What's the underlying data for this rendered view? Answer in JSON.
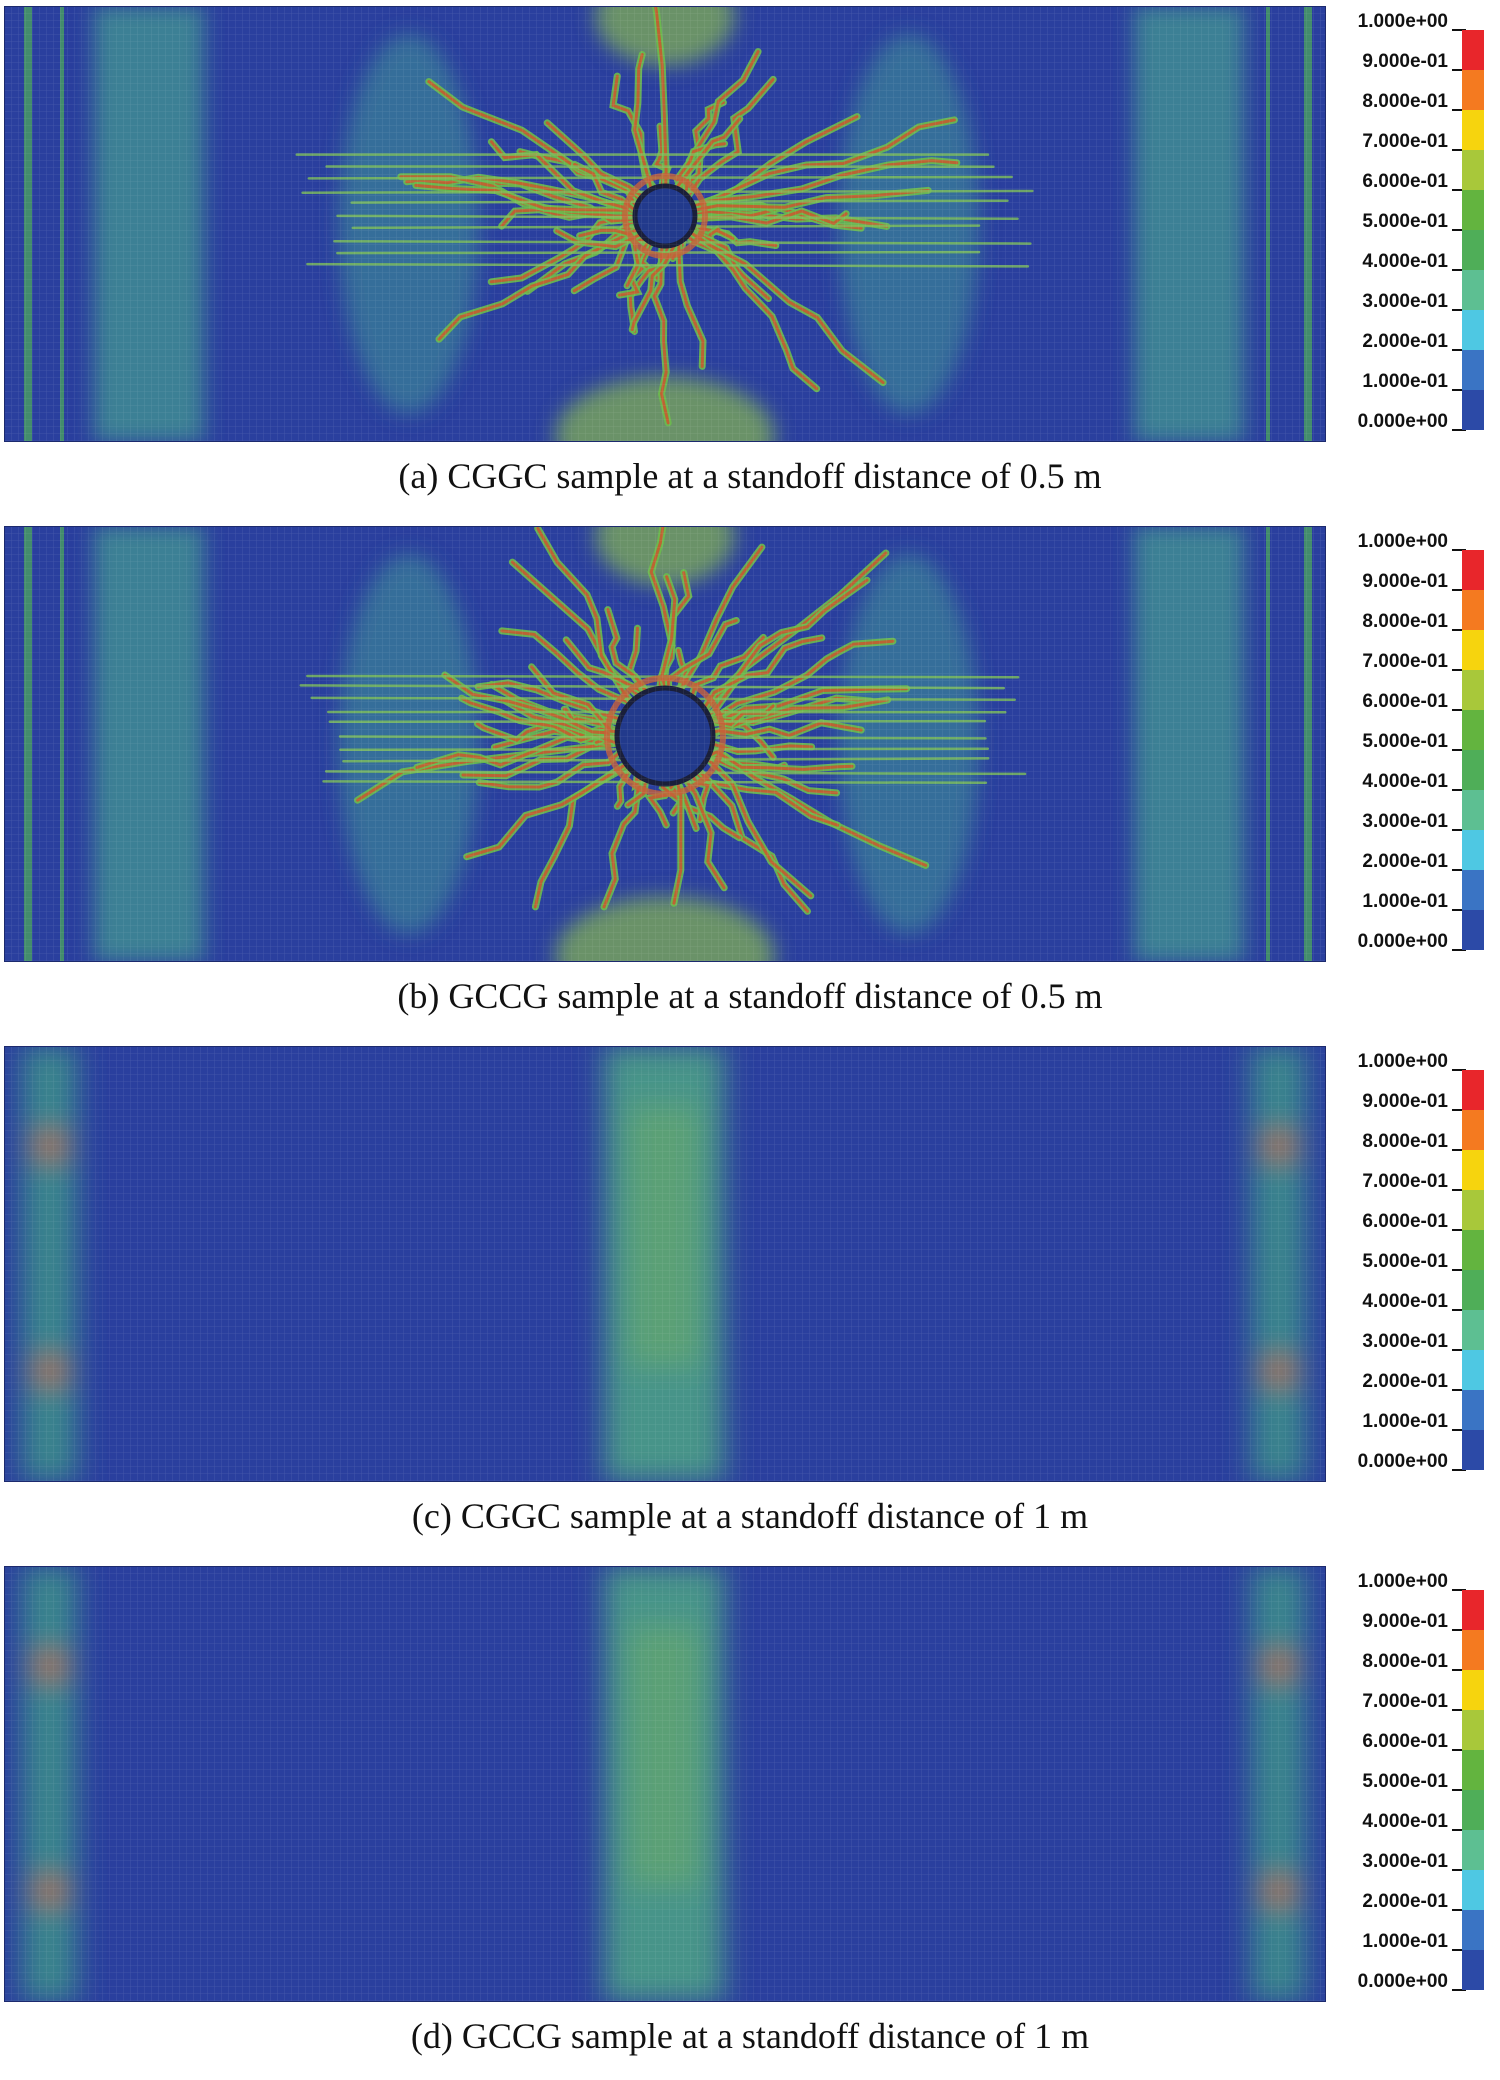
{
  "colorbar": {
    "labels": [
      "1.000e+00",
      "9.000e-01",
      "8.000e-01",
      "7.000e-01",
      "6.000e-01",
      "5.000e-01",
      "4.000e-01",
      "3.000e-01",
      "2.000e-01",
      "1.000e-01",
      "0.000e+00"
    ],
    "colors": [
      "#e8262b",
      "#f47a20",
      "#f6d40e",
      "#a8c83a",
      "#63b43f",
      "#4fae58",
      "#5dbf92",
      "#4ec8e3",
      "#3a74c4",
      "#2c4aa7"
    ]
  },
  "panels": [
    {
      "caption": "(a) CGGC sample at a standoff distance of 0.5 m",
      "damage": "severe"
    },
    {
      "caption": "(b) GCCG sample at a standoff distance of 0.5 m",
      "damage": "severe"
    },
    {
      "caption": "(c) CGGC sample at a standoff distance of 1 m",
      "damage": "mild"
    },
    {
      "caption": "(d) GCCG sample at a standoff distance of 1 m",
      "damage": "mild"
    }
  ]
}
